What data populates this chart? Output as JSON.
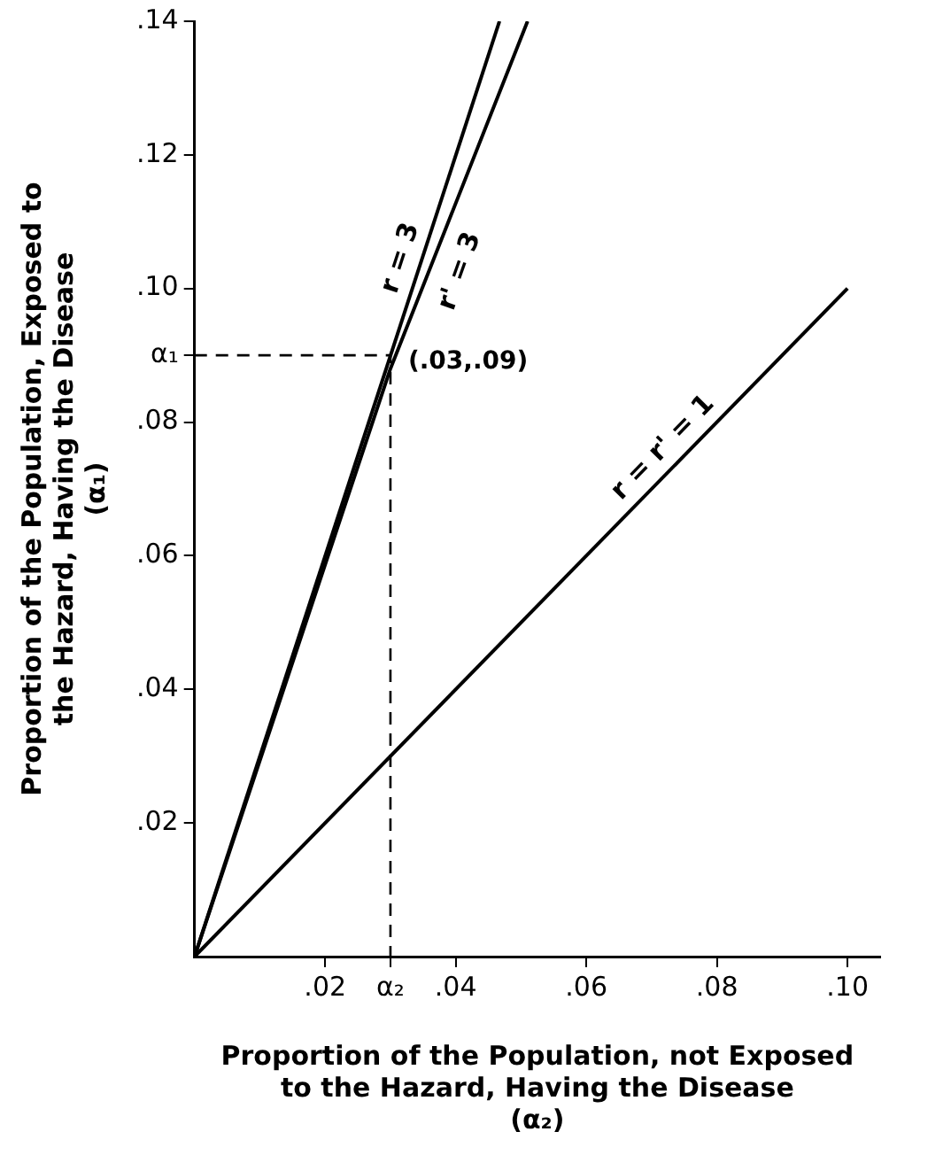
{
  "chart_data": {
    "type": "line",
    "xlabel": "Proportion of the Population, not Exposed\nto the Hazard, Having the Disease\n(α₂)",
    "ylabel": "Proportion of the Population, Exposed to\nthe Hazard, Having the Disease\n(α₁)",
    "xlim": [
      0,
      0.105
    ],
    "ylim": [
      0,
      0.14
    ],
    "xticks": [
      {
        "value": 0.02,
        "label": ".02"
      },
      {
        "value": 0.03,
        "label": "α₂"
      },
      {
        "value": 0.04,
        "label": ".04"
      },
      {
        "value": 0.06,
        "label": ".06"
      },
      {
        "value": 0.08,
        "label": ".08"
      },
      {
        "value": 0.1,
        "label": ".10"
      }
    ],
    "yticks": [
      {
        "value": 0.02,
        "label": ".02"
      },
      {
        "value": 0.04,
        "label": ".04"
      },
      {
        "value": 0.06,
        "label": ".06"
      },
      {
        "value": 0.08,
        "label": ".08"
      },
      {
        "value": 0.09,
        "label": "α₁"
      },
      {
        "value": 0.1,
        "label": ".10"
      },
      {
        "value": 0.12,
        "label": ".12"
      },
      {
        "value": 0.14,
        "label": ".14"
      }
    ],
    "series": [
      {
        "name": "r = 3",
        "color": "#000000",
        "x": [
          0,
          0.0467
        ],
        "values": [
          0,
          0.14
        ]
      },
      {
        "name": "r' = 3",
        "color": "#000000",
        "x": [
          0,
          0.03,
          0.051
        ],
        "values": [
          0,
          0.088,
          0.14
        ]
      },
      {
        "name": "r = r' = 1",
        "color": "#000000",
        "x": [
          0,
          0.1
        ],
        "values": [
          0,
          0.1
        ]
      },
      {
        "color": "#000000",
        "line_style": "dashed",
        "x": [
          0,
          0.03,
          0.03
        ],
        "values": [
          0.09,
          0.09,
          0
        ]
      }
    ],
    "annotations": [
      {
        "text": "(.03,.09)",
        "x": 0.03,
        "y": 0.09
      }
    ],
    "grid": false,
    "legend": false,
    "marker": "none",
    "line_style": "solid"
  }
}
